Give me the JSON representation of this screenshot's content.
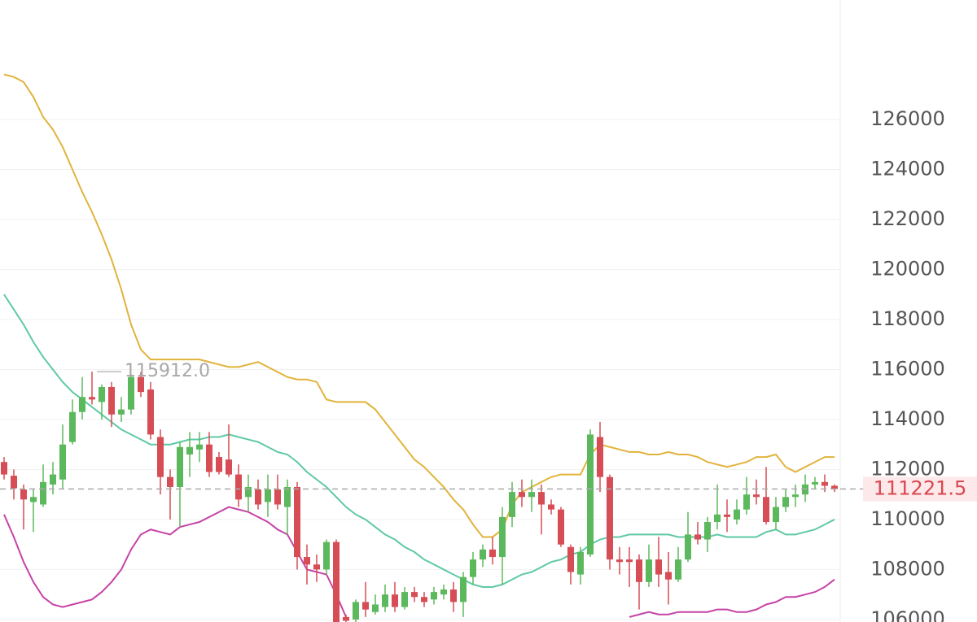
{
  "chart_data": {
    "type": "candlestick",
    "ylim": [
      105900,
      130780
    ],
    "yticks": [
      106000,
      108000,
      110000,
      112000,
      114000,
      116000,
      118000,
      120000,
      122000,
      124000,
      126000
    ],
    "grid": true,
    "up_color": "#5cb85c",
    "down_color": "#d64d55",
    "open": [
      112300,
      111750,
      111200,
      110700,
      110600,
      111400,
      111600,
      113100,
      114300,
      114900,
      114700,
      115300,
      114200,
      114400,
      115700,
      115200,
      113300,
      111700,
      111300,
      112600,
      112800,
      113000,
      112500,
      112400,
      111800,
      110900,
      111200,
      110700,
      111200,
      110500,
      111300,
      108500,
      108200,
      108000,
      109100,
      106100,
      106000,
      106700,
      106300,
      106500,
      107000,
      106500,
      107100,
      106900,
      106800,
      107000,
      107200,
      106700,
      107700,
      108400,
      108800,
      108500,
      110100,
      111100,
      110900,
      111100,
      110600,
      110400,
      108900,
      107800,
      108600,
      113300,
      111700,
      108400,
      108400,
      108400,
      107500,
      108400,
      107900,
      107600,
      108400,
      109400,
      109200,
      109900,
      110200,
      110000,
      110400,
      111000,
      110900,
      109900,
      110500,
      110900,
      111000,
      111400,
      111500,
      111350
    ],
    "high": [
      112500,
      112000,
      111400,
      111200,
      112200,
      112300,
      113800,
      114800,
      115700,
      115912,
      115400,
      115500,
      114900,
      115800,
      115900,
      115500,
      113600,
      112000,
      113100,
      113500,
      113500,
      113500,
      112700,
      113800,
      112200,
      111800,
      111600,
      111800,
      111800,
      111600,
      111500,
      109000,
      108600,
      109200,
      109200,
      106200,
      106800,
      107500,
      107000,
      107400,
      107500,
      107300,
      107300,
      107100,
      107300,
      107400,
      107500,
      107900,
      108700,
      109000,
      109300,
      110500,
      111500,
      111600,
      111600,
      111400,
      110800,
      110500,
      109000,
      108900,
      113600,
      113900,
      111800,
      108900,
      108900,
      108600,
      109000,
      109300,
      108700,
      108900,
      110300,
      109900,
      110100,
      111400,
      110800,
      110800,
      111700,
      111600,
      112100,
      110900,
      111200,
      111400,
      111800,
      111700,
      111800,
      111400
    ],
    "low": [
      111600,
      110800,
      109600,
      109500,
      110500,
      111000,
      111200,
      113000,
      114000,
      114600,
      114000,
      113700,
      113900,
      114200,
      114900,
      113200,
      111000,
      110000,
      109700,
      111700,
      112300,
      111700,
      111800,
      111700,
      110500,
      110300,
      110400,
      110100,
      110400,
      109400,
      108000,
      107400,
      107500,
      107800,
      105900,
      105900,
      105900,
      106100,
      106200,
      106300,
      106300,
      106400,
      106700,
      106500,
      106600,
      106800,
      106300,
      106100,
      107400,
      108100,
      108200,
      107400,
      109700,
      110500,
      110300,
      109400,
      110200,
      108900,
      107400,
      107400,
      108500,
      111100,
      108000,
      107800,
      107300,
      106400,
      107300,
      107300,
      106600,
      107500,
      108300,
      109000,
      108700,
      109600,
      109500,
      109800,
      110200,
      110600,
      109800,
      109600,
      110300,
      110500,
      110700,
      111200,
      111100,
      111100
    ],
    "close": [
      111800,
      111250,
      110800,
      110900,
      111500,
      111800,
      113000,
      114300,
      114900,
      114800,
      115300,
      114200,
      114400,
      115700,
      115100,
      113400,
      111700,
      111300,
      112900,
      112900,
      113000,
      111900,
      111900,
      111800,
      110800,
      111300,
      110600,
      111200,
      110600,
      111300,
      108500,
      108200,
      108000,
      109100,
      105900,
      105950,
      106700,
      106400,
      106600,
      107000,
      106500,
      107100,
      106900,
      106700,
      107100,
      107200,
      106700,
      107700,
      108400,
      108800,
      108500,
      110100,
      111100,
      110900,
      111100,
      110600,
      110400,
      109000,
      107900,
      108700,
      113400,
      111700,
      108400,
      108300,
      108300,
      107500,
      108400,
      107800,
      107600,
      108400,
      109400,
      109200,
      109900,
      110200,
      110100,
      110400,
      111000,
      110900,
      109900,
      110500,
      110900,
      111000,
      111400,
      111500,
      111350,
      111221.5
    ],
    "max_high_label": "115912.0",
    "lines": [
      {
        "color": "#e2b33c",
        "values": [
          127800,
          127700,
          127500,
          126900,
          126100,
          125600,
          124900,
          124000,
          123100,
          122300,
          121400,
          120400,
          119200,
          117800,
          116800,
          116400,
          116400,
          116400,
          116400,
          116400,
          116400,
          116300,
          116200,
          116100,
          116100,
          116200,
          116300,
          116100,
          115900,
          115700,
          115600,
          115600,
          115500,
          114800,
          114700,
          114700,
          114700,
          114700,
          114400,
          113900,
          113400,
          112900,
          112400,
          112100,
          111700,
          111300,
          110800,
          110400,
          109800,
          109300,
          109300,
          109600,
          110600,
          111100,
          111300,
          111500,
          111700,
          111800,
          111800,
          111800,
          112600,
          113000,
          112900,
          112800,
          112700,
          112700,
          112600,
          112600,
          112700,
          112600,
          112600,
          112500,
          112300,
          112200,
          112100,
          112200,
          112300,
          112500,
          112500,
          112600,
          112100,
          111900,
          112100,
          112300,
          112500,
          112500
        ]
      },
      {
        "color": "#5fc9a5",
        "values": [
          119000,
          118400,
          117800,
          117100,
          116500,
          116000,
          115500,
          115100,
          114800,
          114500,
          114200,
          113900,
          113600,
          113400,
          113200,
          113000,
          113000,
          113000,
          113100,
          113200,
          113200,
          113300,
          113300,
          113400,
          113300,
          113200,
          113100,
          112900,
          112700,
          112600,
          112300,
          111900,
          111600,
          111300,
          110900,
          110500,
          110200,
          110000,
          109700,
          109400,
          109200,
          108900,
          108700,
          108400,
          108200,
          108000,
          107800,
          107600,
          107400,
          107300,
          107300,
          107400,
          107600,
          107800,
          107900,
          108100,
          108300,
          108400,
          108600,
          108700,
          109000,
          109200,
          109300,
          109300,
          109400,
          109400,
          109400,
          109400,
          109400,
          109300,
          109300,
          109300,
          109300,
          109400,
          109300,
          109300,
          109300,
          109300,
          109500,
          109600,
          109400,
          109400,
          109500,
          109600,
          109800,
          110000
        ]
      },
      {
        "color": "#c643a6",
        "values": [
          110200,
          109300,
          108300,
          107500,
          106900,
          106600,
          106500,
          106600,
          106700,
          106800,
          107100,
          107500,
          108000,
          108800,
          109400,
          109600,
          109500,
          109400,
          109700,
          109800,
          109900,
          110100,
          110300,
          110500,
          110400,
          110300,
          110100,
          109900,
          109600,
          109400,
          108700,
          108000,
          107900,
          107800,
          107000,
          106100,
          null,
          null,
          null,
          null,
          null,
          null,
          null,
          null,
          null,
          null,
          null,
          null,
          null,
          null,
          null,
          null,
          null,
          null,
          null,
          null,
          null,
          null,
          null,
          null,
          null,
          null,
          null,
          null,
          106100,
          106200,
          106300,
          106200,
          106200,
          106300,
          106300,
          106300,
          106300,
          106400,
          106400,
          106300,
          106300,
          106400,
          106600,
          106700,
          106900,
          106900,
          107000,
          107100,
          107300,
          107600
        ]
      }
    ]
  }
}
